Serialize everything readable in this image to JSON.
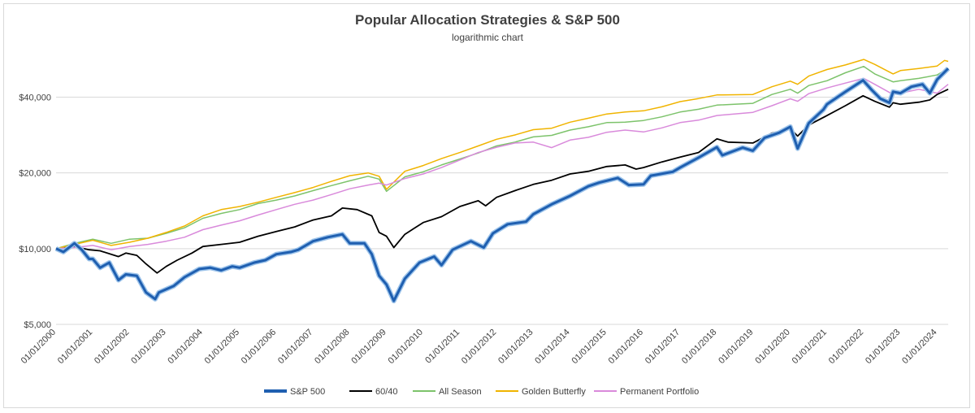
{
  "chart_data": {
    "type": "line",
    "title": "Popular Allocation Strategies & S&P 500",
    "subtitle": "logarithmic chart",
    "xlabel": "",
    "ylabel": "",
    "scale": "log",
    "ylim": [
      5000,
      60000
    ],
    "y_ticks": [
      5000,
      10000,
      20000,
      40000
    ],
    "y_tick_labels": [
      "$5,000",
      "$10,000",
      "$20,000",
      "$40,000"
    ],
    "x_range": [
      2000.0,
      2024.3
    ],
    "x_tick_years": [
      2000,
      2001,
      2002,
      2003,
      2004,
      2005,
      2006,
      2007,
      2008,
      2009,
      2010,
      2011,
      2012,
      2013,
      2014,
      2015,
      2016,
      2017,
      2018,
      2019,
      2020,
      2021,
      2022,
      2023,
      2024
    ],
    "x_tick_labels": [
      "01/01/2000",
      "01/01/2001",
      "01/01/2002",
      "01/01/2003",
      "01/01/2004",
      "01/01/2005",
      "01/01/2006",
      "01/01/2007",
      "01/01/2008",
      "01/01/2009",
      "01/01/2010",
      "01/01/2011",
      "01/01/2012",
      "01/01/2013",
      "01/01/2014",
      "01/01/2015",
      "01/01/2016",
      "01/01/2017",
      "01/01/2018",
      "01/01/2019",
      "01/01/2020",
      "01/01/2021",
      "01/01/2022",
      "01/01/2023",
      "01/01/2024"
    ],
    "grid": true,
    "legend": "bottom",
    "series": [
      {
        "name": "S&P 500",
        "color": "#1f5fb0",
        "emphasis": true,
        "x": [
          2000.0,
          2000.2,
          2000.5,
          2000.7,
          2000.9,
          2001.0,
          2001.2,
          2001.45,
          2001.7,
          2001.9,
          2002.2,
          2002.45,
          2002.7,
          2002.8,
          2003.2,
          2003.5,
          2003.9,
          2004.2,
          2004.5,
          2004.8,
          2005.0,
          2005.4,
          2005.7,
          2006.0,
          2006.4,
          2006.6,
          2007.0,
          2007.4,
          2007.8,
          2008.0,
          2008.4,
          2008.6,
          2008.8,
          2009.0,
          2009.2,
          2009.5,
          2009.9,
          2010.3,
          2010.5,
          2010.8,
          2011.3,
          2011.65,
          2011.9,
          2012.3,
          2012.8,
          2013.0,
          2013.5,
          2014.0,
          2014.5,
          2014.8,
          2015.3,
          2015.6,
          2016.0,
          2016.2,
          2016.8,
          2017.0,
          2017.5,
          2018.0,
          2018.15,
          2018.7,
          2018.98,
          2019.3,
          2019.7,
          2020.0,
          2020.2,
          2020.5,
          2020.9,
          2021.0,
          2021.5,
          2021.98,
          2022.2,
          2022.45,
          2022.7,
          2022.8,
          2023.0,
          2023.3,
          2023.6,
          2023.8,
          2024.0,
          2024.3
        ],
        "values": [
          10000,
          9700,
          10500,
          9900,
          9100,
          9100,
          8400,
          8800,
          7500,
          7900,
          7800,
          6700,
          6300,
          6700,
          7100,
          7700,
          8300,
          8400,
          8200,
          8500,
          8400,
          8800,
          9000,
          9500,
          9700,
          9900,
          10700,
          11100,
          11400,
          10500,
          10500,
          9500,
          7800,
          7200,
          6200,
          7600,
          8800,
          9300,
          8600,
          9900,
          10700,
          10100,
          11500,
          12500,
          12800,
          13700,
          15000,
          16200,
          17700,
          18300,
          19100,
          17900,
          18000,
          19500,
          20200,
          21000,
          23000,
          25300,
          23500,
          25200,
          24500,
          27600,
          28900,
          30500,
          25000,
          31500,
          35700,
          37500,
          42000,
          46700,
          43000,
          39500,
          38000,
          42000,
          41500,
          44000,
          45000,
          41500,
          47000,
          52000
        ]
      },
      {
        "name": "60/40",
        "color": "#000000",
        "x": [
          2000.0,
          2000.5,
          2000.9,
          2001.2,
          2001.7,
          2001.9,
          2002.2,
          2002.45,
          2002.75,
          2003.0,
          2003.3,
          2003.7,
          2004.0,
          2004.5,
          2005.0,
          2005.5,
          2006.0,
          2006.5,
          2007.0,
          2007.5,
          2007.8,
          2008.2,
          2008.6,
          2008.8,
          2009.0,
          2009.2,
          2009.5,
          2010.0,
          2010.5,
          2011.0,
          2011.5,
          2011.7,
          2012.0,
          2012.5,
          2013.0,
          2013.5,
          2014.0,
          2014.5,
          2015.0,
          2015.5,
          2015.8,
          2016.0,
          2016.5,
          2017.0,
          2017.5,
          2018.0,
          2018.3,
          2018.98,
          2019.5,
          2020.0,
          2020.2,
          2020.5,
          2021.0,
          2021.5,
          2021.98,
          2022.3,
          2022.7,
          2022.8,
          2023.0,
          2023.5,
          2023.8,
          2024.0,
          2024.3
        ],
        "values": [
          10000,
          10200,
          9900,
          9800,
          9300,
          9600,
          9400,
          8700,
          8000,
          8500,
          9000,
          9600,
          10200,
          10400,
          10600,
          11200,
          11700,
          12200,
          13000,
          13500,
          14500,
          14300,
          13500,
          11600,
          11200,
          10100,
          11400,
          12700,
          13400,
          14700,
          15500,
          14800,
          16000,
          17000,
          18000,
          18700,
          19800,
          20300,
          21200,
          21500,
          20700,
          21000,
          22100,
          23100,
          24100,
          27300,
          26500,
          26300,
          28800,
          30000,
          28000,
          31000,
          33800,
          37000,
          40500,
          38500,
          36500,
          38000,
          37500,
          38200,
          39000,
          41000,
          43000
        ]
      },
      {
        "name": "All Season",
        "color": "#7dc36b",
        "x": [
          2000.0,
          2000.5,
          2001.0,
          2001.5,
          2002.0,
          2002.5,
          2003.0,
          2003.5,
          2004.0,
          2004.5,
          2005.0,
          2005.5,
          2006.0,
          2006.5,
          2007.0,
          2007.5,
          2008.0,
          2008.5,
          2008.8,
          2009.0,
          2009.5,
          2010.0,
          2010.5,
          2011.0,
          2011.5,
          2012.0,
          2012.5,
          2013.0,
          2013.5,
          2014.0,
          2014.5,
          2015.0,
          2015.5,
          2016.0,
          2016.5,
          2017.0,
          2017.5,
          2018.0,
          2018.98,
          2019.5,
          2020.0,
          2020.2,
          2020.5,
          2021.0,
          2021.5,
          2022.0,
          2022.3,
          2022.8,
          2023.0,
          2023.5,
          2024.0,
          2024.3
        ],
        "values": [
          10000,
          10500,
          10900,
          10500,
          10900,
          11000,
          11500,
          12100,
          13200,
          13800,
          14300,
          15100,
          15600,
          16200,
          17000,
          17800,
          18600,
          19400,
          18900,
          16900,
          19300,
          20200,
          21500,
          22700,
          24000,
          25600,
          26500,
          27800,
          28200,
          29600,
          30500,
          31700,
          31800,
          32300,
          33400,
          34900,
          35800,
          37200,
          37800,
          41000,
          43000,
          41500,
          44500,
          46500,
          50000,
          53000,
          49500,
          46000,
          46500,
          47500,
          49000,
          52000
        ]
      },
      {
        "name": "Golden Butterfly",
        "color": "#f0b400",
        "x": [
          2000.0,
          2000.5,
          2001.0,
          2001.5,
          2002.0,
          2002.5,
          2003.0,
          2003.5,
          2004.0,
          2004.5,
          2005.0,
          2005.5,
          2006.0,
          2006.5,
          2007.0,
          2007.5,
          2008.0,
          2008.5,
          2008.8,
          2009.0,
          2009.5,
          2010.0,
          2010.5,
          2011.0,
          2011.5,
          2012.0,
          2012.5,
          2013.0,
          2013.5,
          2014.0,
          2014.5,
          2015.0,
          2015.5,
          2016.0,
          2016.5,
          2017.0,
          2017.5,
          2018.0,
          2018.98,
          2019.5,
          2020.0,
          2020.2,
          2020.5,
          2021.0,
          2021.5,
          2022.0,
          2022.3,
          2022.8,
          2023.0,
          2023.5,
          2024.0,
          2024.2,
          2024.3
        ],
        "values": [
          10000,
          10400,
          10800,
          10300,
          10600,
          11000,
          11600,
          12300,
          13500,
          14300,
          14700,
          15300,
          16000,
          16700,
          17500,
          18500,
          19500,
          20000,
          19400,
          17200,
          20300,
          21400,
          22800,
          24100,
          25600,
          27200,
          28300,
          29700,
          30100,
          31800,
          33000,
          34300,
          34900,
          35300,
          36600,
          38400,
          39500,
          40800,
          41000,
          44000,
          46300,
          45000,
          48500,
          51500,
          53700,
          56500,
          54000,
          49500,
          51000,
          52000,
          53200,
          56000,
          55500
        ]
      },
      {
        "name": "Permanent Portfolio",
        "color": "#d98adb",
        "x": [
          2000.0,
          2000.5,
          2001.0,
          2001.5,
          2002.0,
          2002.5,
          2003.0,
          2003.5,
          2004.0,
          2004.5,
          2005.0,
          2005.5,
          2006.0,
          2006.5,
          2007.0,
          2007.5,
          2008.0,
          2008.5,
          2008.8,
          2009.0,
          2009.5,
          2010.0,
          2010.5,
          2011.0,
          2011.5,
          2012.0,
          2012.5,
          2013.0,
          2013.5,
          2014.0,
          2014.5,
          2015.0,
          2015.5,
          2016.0,
          2016.5,
          2017.0,
          2017.5,
          2018.0,
          2018.98,
          2019.5,
          2020.0,
          2020.2,
          2020.5,
          2021.0,
          2021.5,
          2022.0,
          2022.3,
          2022.8,
          2023.0,
          2023.5,
          2024.0,
          2024.3
        ],
        "values": [
          10000,
          10100,
          10300,
          9900,
          10200,
          10400,
          10700,
          11100,
          11900,
          12400,
          12900,
          13600,
          14300,
          15000,
          15600,
          16400,
          17300,
          17900,
          18200,
          17900,
          19000,
          19800,
          21000,
          22500,
          24100,
          25300,
          26300,
          26500,
          25200,
          27000,
          27700,
          29000,
          29600,
          29100,
          30200,
          31700,
          32400,
          33800,
          34800,
          37000,
          39400,
          38500,
          41300,
          43500,
          45500,
          47500,
          45000,
          41000,
          41500,
          43000,
          41500,
          45000
        ]
      }
    ]
  }
}
